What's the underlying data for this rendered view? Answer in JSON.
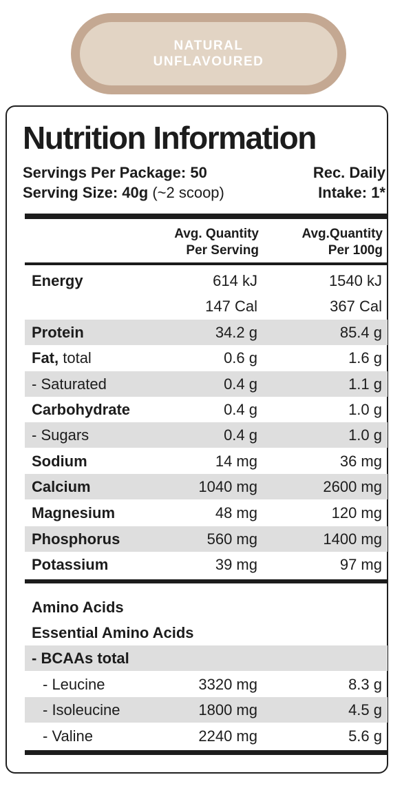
{
  "flavour": {
    "line1": "NATURAL",
    "line2": "UNFLAVOURED"
  },
  "panel": {
    "title": "Nutrition Information",
    "servings_label": "Servings Per Package: 50",
    "serving_size_label": "Serving Size: 40g",
    "serving_size_note": "(~2 scoop)",
    "rdi_line1": "Rec. Daily",
    "rdi_line2": "Intake: 1*"
  },
  "columns": {
    "per_serving_1": "Avg. Quantity",
    "per_serving_2": "Per Serving",
    "per_100g_1": "Avg.Quantity",
    "per_100g_2": "Per 100g"
  },
  "nutrients": {
    "energy": {
      "label": "Energy",
      "kj_serving": "614 kJ",
      "kj_100g": "1540 kJ",
      "cal_serving": "147 Cal",
      "cal_100g": "367 Cal"
    },
    "protein": {
      "label": "Protein",
      "serving": "34.2 g",
      "per100": "85.4 g"
    },
    "fat": {
      "label": "Fat,",
      "label_suffix": " total",
      "serving": "0.6 g",
      "per100": "1.6 g"
    },
    "saturated": {
      "label": "- Saturated",
      "serving": "0.4 g",
      "per100": "1.1 g"
    },
    "carbohydrate": {
      "label": "Carbohydrate",
      "serving": "0.4 g",
      "per100": "1.0 g"
    },
    "sugars": {
      "label": "- Sugars",
      "serving": "0.4 g",
      "per100": "1.0 g"
    },
    "sodium": {
      "label": "Sodium",
      "serving": "14 mg",
      "per100": "36 mg"
    },
    "calcium": {
      "label": "Calcium",
      "serving": "1040 mg",
      "per100": "2600 mg"
    },
    "magnesium": {
      "label": "Magnesium",
      "serving": "48 mg",
      "per100": "120 mg"
    },
    "phosphorus": {
      "label": "Phosphorus",
      "serving": "560 mg",
      "per100": "1400 mg"
    },
    "potassium": {
      "label": "Potassium",
      "serving": "39 mg",
      "per100": "97 mg"
    }
  },
  "amino": {
    "heading": "Amino Acids",
    "essential_heading": "Essential Amino Acids",
    "bcaa_label": "- BCAAs total",
    "leucine": {
      "label": "- Leucine",
      "serving": "3320 mg",
      "per100": "8.3 g"
    },
    "isoleucine": {
      "label": "- Isoleucine",
      "serving": "1800 mg",
      "per100": "4.5 g"
    },
    "valine": {
      "label": "- Valine",
      "serving": "2240 mg",
      "per100": "5.6 g"
    }
  },
  "colors": {
    "pill_outer": "#c4a892",
    "pill_inner": "#e2d4c4",
    "row_shade": "#dedede",
    "text": "#1c1c1c"
  }
}
